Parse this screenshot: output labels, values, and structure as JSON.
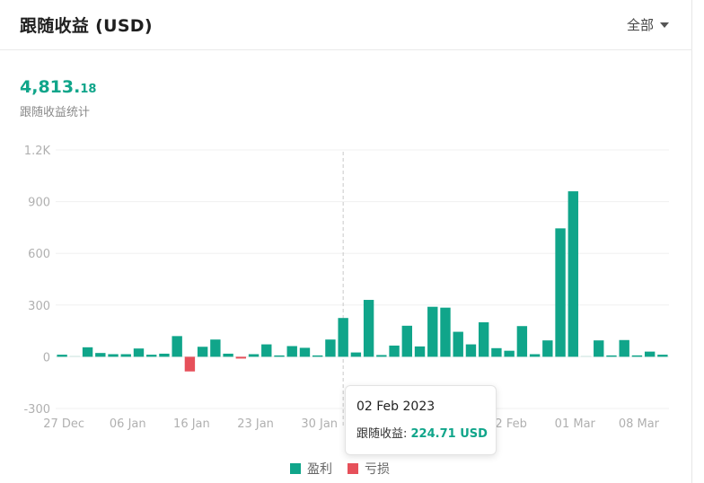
{
  "header": {
    "title": "跟随收益 (USD)",
    "filter_label": "全部"
  },
  "summary": {
    "total_int": "4,813.",
    "total_dec": "18",
    "label": "跟随收益统计"
  },
  "tooltip": {
    "date": "02 Feb 2023",
    "label": "跟随收益: ",
    "value": "224.71 USD"
  },
  "legend": {
    "profit_label": "盈利",
    "loss_label": "亏损"
  },
  "colors": {
    "profit": "#10a58a",
    "loss": "#e6505a",
    "accent": "#10a58a"
  },
  "chart_data": {
    "type": "bar",
    "title": "跟随收益 (USD)",
    "xlabel": "",
    "ylabel": "",
    "ylim": [
      -300,
      1200
    ],
    "yticks": [
      -300,
      0,
      300,
      600,
      900,
      1200
    ],
    "ytick_labels": [
      "-300",
      "0",
      "300",
      "600",
      "900",
      "1.2K"
    ],
    "xtick_labels": [
      {
        "label": "27 Dec",
        "index": 0
      },
      {
        "label": "06 Jan",
        "index": 5
      },
      {
        "label": "16 Jan",
        "index": 10
      },
      {
        "label": "23 Jan",
        "index": 15
      },
      {
        "label": "30 Jan",
        "index": 20
      },
      {
        "label": "2 Feb",
        "index": 35
      },
      {
        "label": "01 Mar",
        "index": 40
      },
      {
        "label": "08 Mar",
        "index": 45
      }
    ],
    "highlight_index": 22,
    "grid": true,
    "legend_position": "bottom",
    "series": [
      {
        "name": "盈利",
        "values": [
          12,
          0,
          55,
          22,
          15,
          15,
          48,
          12,
          18,
          120,
          0,
          58,
          100,
          18,
          0,
          15,
          72,
          3,
          62,
          52,
          5,
          100,
          225,
          25,
          330,
          10,
          65,
          180,
          60,
          290,
          285,
          145,
          72,
          200,
          50,
          35,
          178,
          15,
          95,
          745,
          960,
          0,
          95,
          5,
          97,
          8,
          30,
          12
        ]
      },
      {
        "name": "亏损",
        "values": [
          0,
          0,
          0,
          0,
          0,
          0,
          0,
          0,
          0,
          0,
          -85,
          0,
          0,
          0,
          -8,
          0,
          0,
          0,
          0,
          0,
          0,
          0,
          0,
          0,
          0,
          0,
          0,
          0,
          0,
          0,
          0,
          0,
          0,
          0,
          0,
          0,
          0,
          0,
          0,
          0,
          0,
          0,
          0,
          0,
          0,
          0,
          0,
          0
        ]
      }
    ]
  }
}
